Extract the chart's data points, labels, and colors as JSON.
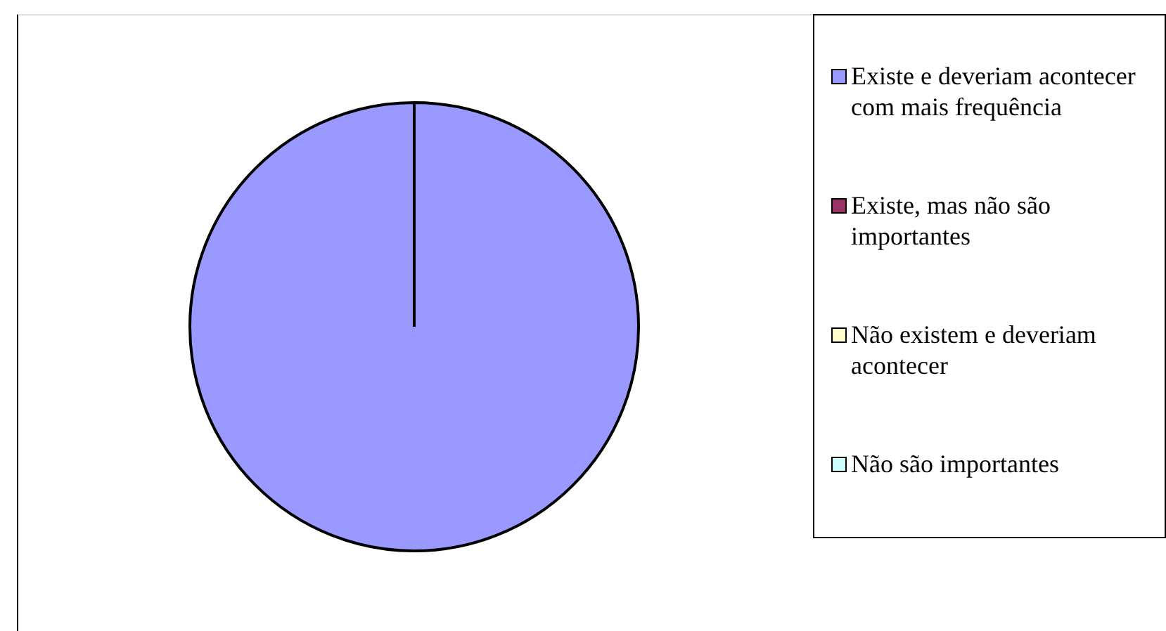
{
  "chart_data": {
    "type": "pie",
    "categories": [
      "Existe e deveriam acontecer com mais frequência",
      "Existe, mas não são importantes",
      "Não existem e deveriam acontecer",
      "Não são importantes"
    ],
    "values": [
      100,
      0,
      0,
      0
    ],
    "colors": [
      "#9999ff",
      "#993366",
      "#ffffcc",
      "#ccffff"
    ],
    "legend": "right"
  }
}
